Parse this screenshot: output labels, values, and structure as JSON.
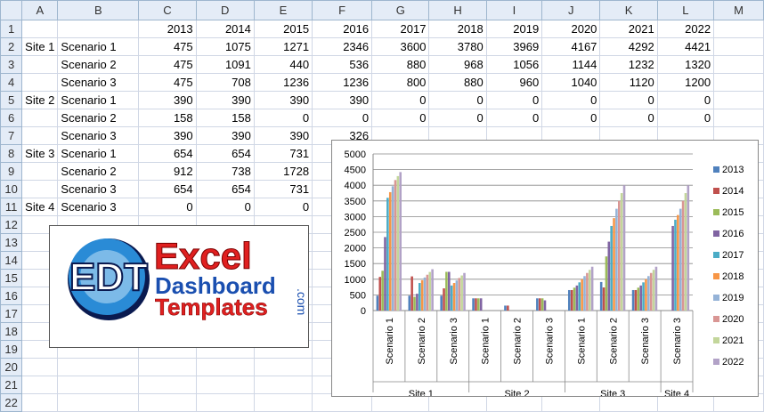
{
  "sheet": {
    "columns": [
      "A",
      "B",
      "C",
      "D",
      "E",
      "F",
      "G",
      "H",
      "I",
      "J",
      "K",
      "L",
      "M"
    ],
    "rows": [
      {
        "num": "1",
        "site": "",
        "scenario": "",
        "values": [
          "2013",
          "2014",
          "2015",
          "2016",
          "2017",
          "2018",
          "2019",
          "2020",
          "2021",
          "2022"
        ]
      },
      {
        "num": "2",
        "site": "Site 1",
        "scenario": "Scenario 1",
        "values": [
          "475",
          "1075",
          "1271",
          "2346",
          "3600",
          "3780",
          "3969",
          "4167",
          "4292",
          "4421"
        ]
      },
      {
        "num": "3",
        "site": "",
        "scenario": "Scenario 2",
        "values": [
          "475",
          "1091",
          "440",
          "536",
          "880",
          "968",
          "1056",
          "1144",
          "1232",
          "1320"
        ]
      },
      {
        "num": "4",
        "site": "",
        "scenario": "Scenario 3",
        "values": [
          "475",
          "708",
          "1236",
          "1236",
          "800",
          "880",
          "960",
          "1040",
          "1120",
          "1200"
        ]
      },
      {
        "num": "5",
        "site": "Site 2",
        "scenario": "Scenario 1",
        "values": [
          "390",
          "390",
          "390",
          "390",
          "0",
          "0",
          "0",
          "0",
          "0",
          "0"
        ]
      },
      {
        "num": "6",
        "site": "",
        "scenario": "Scenario 2",
        "values": [
          "158",
          "158",
          "0",
          "0",
          "0",
          "0",
          "0",
          "0",
          "0",
          "0"
        ]
      },
      {
        "num": "7",
        "site": "",
        "scenario": "Scenario 3",
        "values": [
          "390",
          "390",
          "390",
          "326",
          "",
          "",
          "",
          "",
          "",
          ""
        ]
      },
      {
        "num": "8",
        "site": "Site 3",
        "scenario": "Scenario 1",
        "values": [
          "654",
          "654",
          "731",
          "",
          "",
          "",
          "",
          "",
          "",
          ""
        ]
      },
      {
        "num": "9",
        "site": "",
        "scenario": "Scenario 2",
        "values": [
          "912",
          "738",
          "1728",
          "",
          "",
          "",
          "",
          "",
          "",
          ""
        ]
      },
      {
        "num": "10",
        "site": "",
        "scenario": "Scenario 3",
        "values": [
          "654",
          "654",
          "731",
          "",
          "",
          "",
          "",
          "",
          "",
          ""
        ]
      },
      {
        "num": "11",
        "site": "Site 4",
        "scenario": "Scenario 3",
        "values": [
          "0",
          "0",
          "0",
          "",
          "",
          "",
          "",
          "",
          "",
          ""
        ]
      },
      {
        "num": "12",
        "site": "",
        "scenario": "",
        "values": [
          "",
          "",
          "",
          "",
          "",
          "",
          "",
          "",
          "",
          ""
        ]
      },
      {
        "num": "13",
        "site": "",
        "scenario": "",
        "values": [
          "",
          "",
          "",
          "",
          "",
          "",
          "",
          "",
          "",
          ""
        ]
      },
      {
        "num": "14",
        "site": "",
        "scenario": "",
        "values": [
          "",
          "",
          "",
          "",
          "",
          "",
          "",
          "",
          "",
          ""
        ]
      },
      {
        "num": "15",
        "site": "",
        "scenario": "",
        "values": [
          "",
          "",
          "",
          "",
          "",
          "",
          "",
          "",
          "",
          ""
        ]
      },
      {
        "num": "16",
        "site": "",
        "scenario": "",
        "values": [
          "",
          "",
          "",
          "",
          "",
          "",
          "",
          "",
          "",
          ""
        ]
      },
      {
        "num": "17",
        "site": "",
        "scenario": "",
        "values": [
          "",
          "",
          "",
          "",
          "",
          "",
          "",
          "",
          "",
          ""
        ]
      },
      {
        "num": "18",
        "site": "",
        "scenario": "",
        "values": [
          "",
          "",
          "",
          "",
          "",
          "",
          "",
          "",
          "",
          ""
        ]
      },
      {
        "num": "19",
        "site": "",
        "scenario": "",
        "values": [
          "",
          "",
          "",
          "",
          "",
          "",
          "",
          "",
          "",
          ""
        ]
      },
      {
        "num": "20",
        "site": "",
        "scenario": "",
        "values": [
          "",
          "",
          "",
          "",
          "",
          "",
          "",
          "",
          "",
          ""
        ]
      },
      {
        "num": "21",
        "site": "",
        "scenario": "",
        "values": [
          "",
          "",
          "",
          "",
          "",
          "",
          "",
          "",
          "",
          ""
        ]
      },
      {
        "num": "22",
        "site": "",
        "scenario": "",
        "values": [
          "",
          "",
          "",
          "",
          "",
          "",
          "",
          "",
          "",
          ""
        ]
      }
    ]
  },
  "logo": {
    "line1": "Excel",
    "line2": "Dashboard",
    "line3": "Templates",
    "suffix": ".com",
    "mark": "EDT",
    "colors": {
      "red": "#e02020",
      "blue": "#1a4fb0",
      "dark": "#0a1a50"
    }
  },
  "chart_data": {
    "type": "bar",
    "ylim": [
      0,
      5000
    ],
    "yticks": [
      "0",
      "500",
      "1000",
      "1500",
      "2000",
      "2500",
      "3000",
      "3500",
      "4000",
      "4500",
      "5000"
    ],
    "legend_position": "right",
    "grid": true,
    "categories": [
      {
        "site": "Site 1",
        "scenario": "Scenario 1"
      },
      {
        "site": "Site 1",
        "scenario": "Scenario 2"
      },
      {
        "site": "Site 1",
        "scenario": "Scenario 3"
      },
      {
        "site": "Site 2",
        "scenario": "Scenario 1"
      },
      {
        "site": "Site 2",
        "scenario": "Scenario 2"
      },
      {
        "site": "Site 2",
        "scenario": "Scenario 3"
      },
      {
        "site": "Site 3",
        "scenario": "Scenario 1"
      },
      {
        "site": "Site 3",
        "scenario": "Scenario 2"
      },
      {
        "site": "Site 3",
        "scenario": "Scenario 3"
      },
      {
        "site": "Site 4",
        "scenario": "Scenario 3"
      }
    ],
    "groups": [
      {
        "label": "Site 1",
        "count": 3
      },
      {
        "label": "Site 2",
        "count": 3
      },
      {
        "label": "Site 3",
        "count": 3
      },
      {
        "label": "Site 4",
        "count": 1
      }
    ],
    "series": [
      {
        "name": "2013",
        "color": "#4f81bd",
        "values": [
          475,
          475,
          475,
          390,
          158,
          390,
          654,
          912,
          654,
          0
        ]
      },
      {
        "name": "2014",
        "color": "#c0504d",
        "values": [
          1075,
          1091,
          708,
          390,
          158,
          390,
          654,
          738,
          654,
          0
        ]
      },
      {
        "name": "2015",
        "color": "#9bbb59",
        "values": [
          1271,
          440,
          1236,
          390,
          0,
          390,
          731,
          1728,
          731,
          0
        ]
      },
      {
        "name": "2016",
        "color": "#8064a2",
        "values": [
          2346,
          536,
          1236,
          390,
          0,
          326,
          800,
          2200,
          800,
          2700
        ]
      },
      {
        "name": "2017",
        "color": "#4bacc6",
        "values": [
          3600,
          880,
          800,
          0,
          0,
          0,
          900,
          2700,
          900,
          2900
        ]
      },
      {
        "name": "2018",
        "color": "#f79646",
        "values": [
          3780,
          968,
          880,
          0,
          0,
          0,
          1000,
          2950,
          1000,
          3050
        ]
      },
      {
        "name": "2019",
        "color": "#95b3d7",
        "values": [
          3969,
          1056,
          960,
          0,
          0,
          0,
          1100,
          3250,
          1100,
          3250
        ]
      },
      {
        "name": "2020",
        "color": "#d99694",
        "values": [
          4167,
          1144,
          1040,
          0,
          0,
          0,
          1200,
          3500,
          1200,
          3500
        ]
      },
      {
        "name": "2021",
        "color": "#c3d69b",
        "values": [
          4292,
          1232,
          1120,
          0,
          0,
          0,
          1300,
          3750,
          1300,
          3750
        ]
      },
      {
        "name": "2022",
        "color": "#b2a2c7",
        "values": [
          4421,
          1320,
          1200,
          0,
          0,
          0,
          1400,
          4000,
          1400,
          4000
        ]
      }
    ]
  }
}
